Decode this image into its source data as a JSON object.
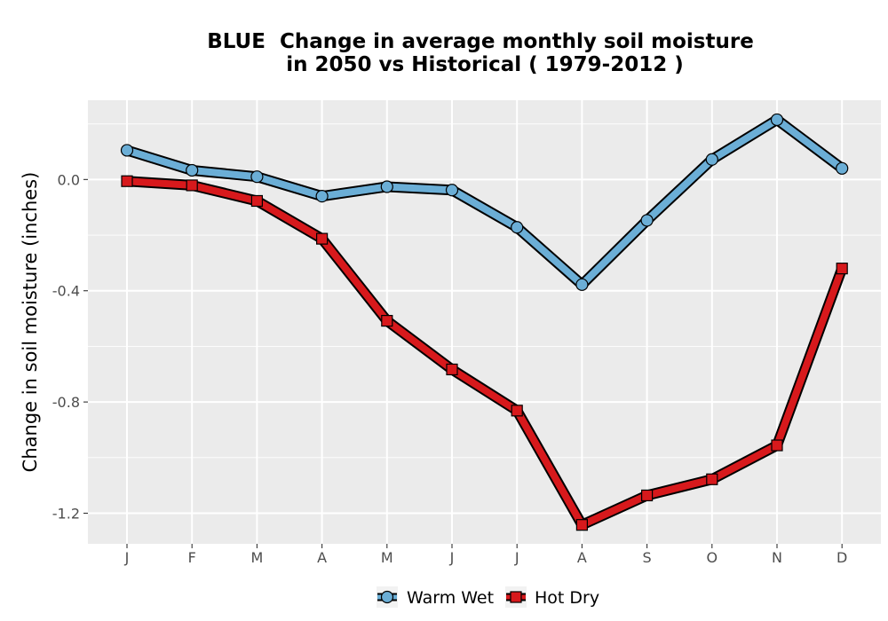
{
  "chart_data": {
    "type": "line",
    "title_line1": "BLUE  Change in average monthly soil moisture",
    "title_line2": "in 2050 vs Historical ( 1979-2012 )",
    "xlabel": "",
    "ylabel": "Change in soil moisture (inches)",
    "categories": [
      "J",
      "F",
      "M",
      "A",
      "M",
      "J",
      "J",
      "A",
      "S",
      "O",
      "N",
      "D"
    ],
    "ylim": [
      -1.31,
      0.285
    ],
    "yticks": [
      0.0,
      -0.4,
      -0.8,
      -1.2
    ],
    "ytick_labels": [
      "0.0",
      "-0.4",
      "-0.8",
      "-1.2"
    ],
    "grid": true,
    "legend_position": "bottom",
    "series": [
      {
        "name": "Warm Wet",
        "marker": "circle",
        "color": "#6baed6",
        "values": [
          0.105,
          0.033,
          0.01,
          -0.06,
          -0.026,
          -0.038,
          -0.172,
          -0.378,
          -0.147,
          0.072,
          0.215,
          0.04
        ]
      },
      {
        "name": "Hot Dry",
        "marker": "square",
        "color": "#d7191c",
        "values": [
          -0.006,
          -0.021,
          -0.077,
          -0.213,
          -0.508,
          -0.683,
          -0.831,
          -1.242,
          -1.136,
          -1.078,
          -0.956,
          -0.32
        ]
      }
    ]
  }
}
